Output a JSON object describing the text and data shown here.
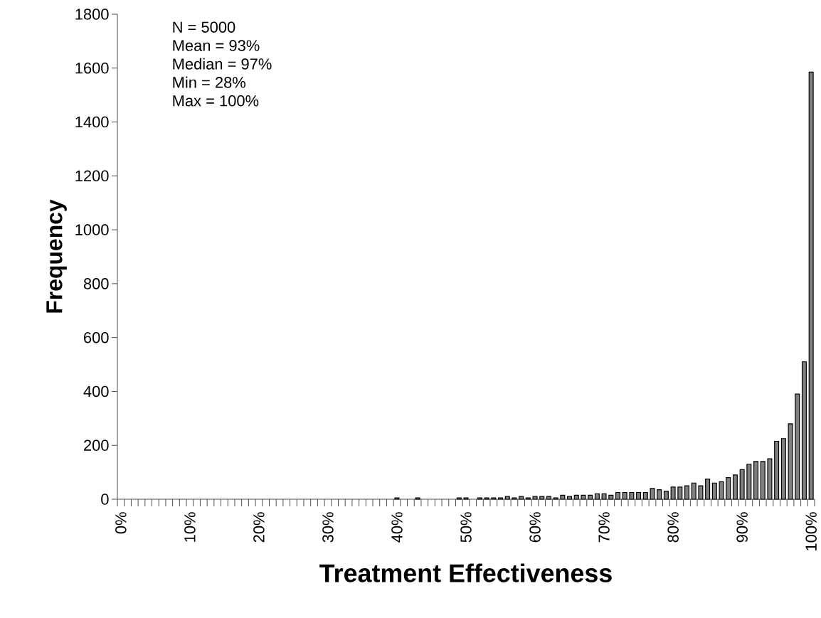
{
  "chart_data": {
    "type": "bar",
    "xlabel": "Treatment Effectiveness",
    "ylabel": "Frequency",
    "annotations": [
      "N = 5000",
      "Mean = 93%",
      "Median = 97%",
      "Min = 28%",
      "Max = 100%"
    ],
    "categories": [
      "0%",
      null,
      null,
      null,
      null,
      null,
      null,
      null,
      null,
      null,
      "10%",
      null,
      null,
      null,
      null,
      null,
      null,
      null,
      null,
      null,
      "20%",
      null,
      null,
      null,
      null,
      null,
      null,
      null,
      null,
      null,
      "30%",
      null,
      null,
      null,
      null,
      null,
      null,
      null,
      null,
      null,
      "40%",
      null,
      null,
      null,
      null,
      null,
      null,
      null,
      null,
      null,
      "50%",
      null,
      null,
      null,
      null,
      null,
      null,
      null,
      null,
      null,
      "60%",
      null,
      null,
      null,
      null,
      null,
      null,
      null,
      null,
      null,
      "70%",
      null,
      null,
      null,
      null,
      null,
      null,
      null,
      null,
      null,
      "80%",
      null,
      null,
      null,
      null,
      null,
      null,
      null,
      null,
      null,
      "90%",
      null,
      null,
      null,
      null,
      null,
      null,
      null,
      null,
      null,
      "100%"
    ],
    "values": [
      0,
      0,
      0,
      0,
      0,
      0,
      0,
      0,
      0,
      0,
      0,
      0,
      0,
      0,
      0,
      0,
      0,
      0,
      0,
      0,
      0,
      0,
      0,
      0,
      0,
      0,
      0,
      0,
      0,
      0,
      0,
      0,
      0,
      0,
      0,
      0,
      0,
      0,
      0,
      0,
      5,
      0,
      0,
      5,
      0,
      0,
      0,
      0,
      0,
      5,
      5,
      0,
      5,
      5,
      5,
      5,
      10,
      5,
      10,
      5,
      10,
      10,
      10,
      5,
      15,
      10,
      15,
      15,
      15,
      20,
      20,
      15,
      25,
      25,
      25,
      25,
      25,
      40,
      35,
      30,
      45,
      45,
      50,
      60,
      50,
      75,
      60,
      65,
      80,
      90,
      110,
      130,
      140,
      140,
      150,
      215,
      225,
      280,
      390,
      510,
      1585
    ],
    "color": "#808080",
    "ylim": [
      0,
      1800
    ],
    "yticks": [
      0,
      200,
      400,
      600,
      800,
      1000,
      1200,
      1400,
      1600,
      1800
    ]
  }
}
